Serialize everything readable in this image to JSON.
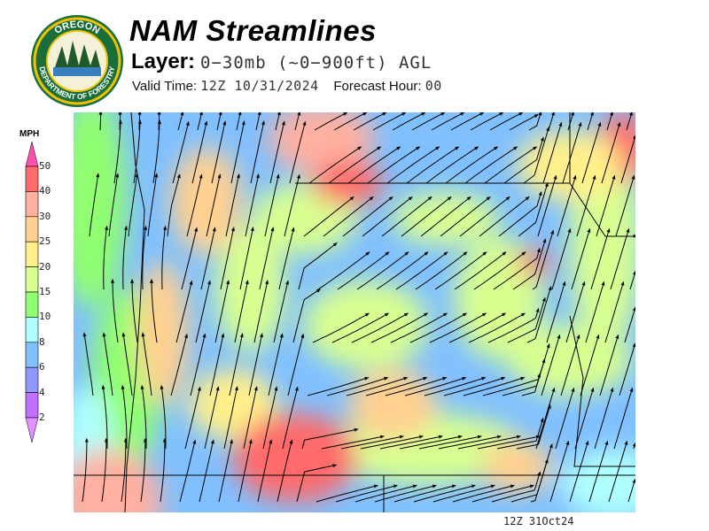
{
  "header": {
    "title": "NAM Streamlines",
    "layer_label": "Layer:",
    "layer_value": "0−30mb (~0−900ft) AGL",
    "valid_time_label": "Valid Time:",
    "valid_time_value": "12Z 10/31/2024",
    "forecast_hour_label": "Forecast Hour:",
    "forecast_hour_value": "00"
  },
  "logo": {
    "top_text": "OREGON",
    "bottom_text": "DEPARTMENT OF FORESTRY",
    "colors": {
      "ring": "#f2c200",
      "inner": "#1a6e3a"
    }
  },
  "legend": {
    "units": "MPH",
    "ticks": [
      "50",
      "40",
      "30",
      "25",
      "20",
      "15",
      "10",
      "8",
      "6",
      "4",
      "2"
    ],
    "colors": [
      "#ff6a6a",
      "#ffb0a0",
      "#ffd090",
      "#fff08a",
      "#d8ff90",
      "#90ff70",
      "#b0ffff",
      "#80c0ff",
      "#9098ff",
      "#c070ff"
    ],
    "over_color": "#ff50b0",
    "under_color": "#e090ff"
  },
  "map": {
    "timestamp": "12Z 31Oct24"
  }
}
